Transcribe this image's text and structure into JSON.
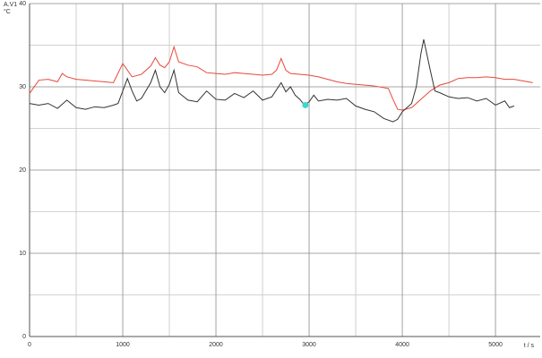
{
  "chart_data": {
    "type": "line",
    "y_label": "A.V1",
    "y_unit": "°C",
    "x_label": "t / s",
    "xlim": [
      0,
      5480
    ],
    "ylim": [
      0,
      40
    ],
    "xticks": [
      0,
      1000,
      2000,
      3000,
      4000,
      5000
    ],
    "yticks": [
      0,
      10,
      20,
      30,
      40
    ],
    "grid": true,
    "series": [
      {
        "color": "#e8483c",
        "x": [
          0,
          100,
          200,
          300,
          350,
          400,
          500,
          600,
          700,
          800,
          900,
          1000,
          1100,
          1200,
          1300,
          1350,
          1400,
          1450,
          1500,
          1550,
          1600,
          1700,
          1800,
          1900,
          2000,
          2100,
          2200,
          2300,
          2400,
          2500,
          2600,
          2650,
          2700,
          2750,
          2800,
          2900,
          3000,
          3100,
          3200,
          3300,
          3400,
          3500,
          3600,
          3700,
          3800,
          3850,
          3900,
          3950,
          4000,
          4100,
          4200,
          4300,
          4400,
          4500,
          4600,
          4700,
          4800,
          4900,
          5000,
          5100,
          5200,
          5300,
          5400
        ],
        "values": [
          29.2,
          30.8,
          30.9,
          30.6,
          31.6,
          31.2,
          30.9,
          30.8,
          30.7,
          30.6,
          30.5,
          32.8,
          31.2,
          31.5,
          32.5,
          33.5,
          32.6,
          32.3,
          33.0,
          34.8,
          33.0,
          32.6,
          32.4,
          31.7,
          31.6,
          31.5,
          31.7,
          31.6,
          31.5,
          31.4,
          31.5,
          32.0,
          33.4,
          32.0,
          31.6,
          31.5,
          31.4,
          31.2,
          30.9,
          30.6,
          30.4,
          30.3,
          30.2,
          30.1,
          29.9,
          29.8,
          28.5,
          27.3,
          27.2,
          27.5,
          28.5,
          29.5,
          30.2,
          30.5,
          31.0,
          31.1,
          31.1,
          31.2,
          31.1,
          30.9,
          30.9,
          30.7,
          30.5
        ]
      },
      {
        "color": "#333333",
        "x": [
          0,
          100,
          200,
          300,
          400,
          500,
          600,
          700,
          800,
          900,
          950,
          1000,
          1050,
          1100,
          1150,
          1200,
          1300,
          1350,
          1400,
          1450,
          1500,
          1550,
          1600,
          1700,
          1800,
          1900,
          2000,
          2100,
          2200,
          2300,
          2400,
          2500,
          2600,
          2700,
          2750,
          2800,
          2850,
          2900,
          2950,
          3000,
          3050,
          3100,
          3200,
          3300,
          3400,
          3500,
          3600,
          3700,
          3800,
          3900,
          3950,
          4000,
          4100,
          4150,
          4200,
          4230,
          4300,
          4350,
          4400,
          4500,
          4600,
          4700,
          4800,
          4900,
          5000,
          5100,
          5150,
          5200
        ],
        "values": [
          28.0,
          27.8,
          28.0,
          27.4,
          28.4,
          27.5,
          27.3,
          27.6,
          27.5,
          27.8,
          28.0,
          29.5,
          31.0,
          29.5,
          28.3,
          28.6,
          30.5,
          32.0,
          30.0,
          29.3,
          30.3,
          32.0,
          29.3,
          28.4,
          28.2,
          29.5,
          28.5,
          28.4,
          29.2,
          28.7,
          29.5,
          28.4,
          28.8,
          30.5,
          29.4,
          30.0,
          29.0,
          28.5,
          27.8,
          28.2,
          29.0,
          28.3,
          28.5,
          28.4,
          28.6,
          27.7,
          27.3,
          27.0,
          26.2,
          25.8,
          26.1,
          27.0,
          28.0,
          30.0,
          34.0,
          35.7,
          32.0,
          29.5,
          29.3,
          28.8,
          28.6,
          28.7,
          28.3,
          28.6,
          27.8,
          28.3,
          27.5,
          27.7
        ]
      }
    ],
    "marker": {
      "x": 2960,
      "y": 27.8,
      "color": "#3fd6d0"
    }
  }
}
